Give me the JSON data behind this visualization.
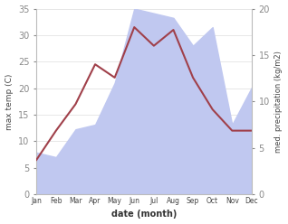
{
  "months": [
    1,
    2,
    3,
    4,
    5,
    6,
    7,
    8,
    9,
    10,
    11,
    12
  ],
  "month_labels": [
    "Jan",
    "Feb",
    "Mar",
    "Apr",
    "May",
    "Jun",
    "Jul",
    "Aug",
    "Sep",
    "Oct",
    "Nov",
    "Dec"
  ],
  "temperature": [
    6.5,
    12.0,
    17.0,
    24.5,
    22.0,
    31.5,
    28.0,
    31.0,
    22.0,
    16.0,
    12.0,
    12.0
  ],
  "precipitation_kg": [
    4.5,
    4.0,
    7.0,
    7.5,
    12.0,
    20.0,
    19.5,
    19.0,
    16.0,
    18.0,
    7.5,
    11.5
  ],
  "temp_color": "#a0404a",
  "precip_fill_color": "#c0c8f0",
  "temp_ylim": [
    0,
    35
  ],
  "precip_ylim": [
    0,
    20
  ],
  "scale_factor": 1.75,
  "ylabel_left": "max temp (C)",
  "ylabel_right": "med. precipitation (kg/m2)",
  "xlabel": "date (month)",
  "background_color": "#ffffff",
  "figure_width": 3.18,
  "figure_height": 2.48,
  "dpi": 100
}
